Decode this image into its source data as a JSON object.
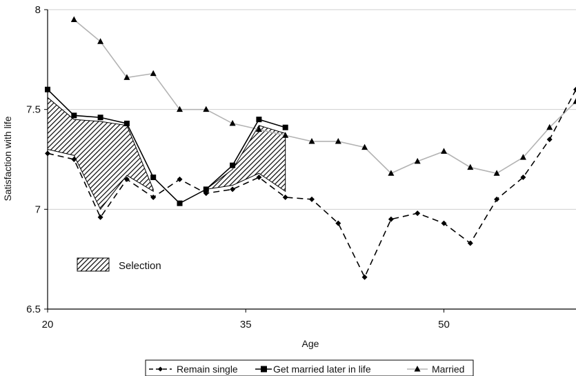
{
  "chart_data": {
    "type": "line",
    "xlabel": "Age",
    "ylabel": "Satisfaction with life",
    "xlim": [
      20,
      60
    ],
    "ylim": [
      6.5,
      8
    ],
    "x_ticks": [
      20,
      35,
      50
    ],
    "x_tick_labels": [
      "20",
      "35",
      "50"
    ],
    "y_ticks": [
      6.5,
      7,
      7.5,
      8
    ],
    "y_tick_labels": [
      "6.5",
      "7",
      "7.5",
      "8"
    ],
    "grid": "horizontal",
    "series": [
      {
        "name": "Remain single",
        "style": "dashed",
        "marker": "diamond",
        "color": "#000000",
        "x": [
          20,
          22,
          24,
          26,
          28,
          30,
          32,
          34,
          36,
          38,
          40,
          42,
          44,
          46,
          48,
          50,
          52,
          54,
          56,
          58,
          60
        ],
        "y": [
          7.28,
          7.25,
          6.96,
          7.15,
          7.06,
          7.15,
          7.08,
          7.1,
          7.16,
          7.06,
          7.05,
          6.93,
          6.66,
          6.95,
          6.98,
          6.93,
          6.83,
          7.05,
          7.16,
          7.35,
          7.6
        ]
      },
      {
        "name": "Get married later in life",
        "style": "solid",
        "marker": "square",
        "color": "#000000",
        "x": [
          20,
          22,
          24,
          26,
          28,
          30,
          32,
          34,
          36,
          38
        ],
        "y": [
          7.6,
          7.47,
          7.46,
          7.43,
          7.16,
          7.03,
          7.1,
          7.22,
          7.45,
          7.41
        ]
      },
      {
        "name": "Married",
        "style": "solid",
        "marker": "triangle",
        "color": "#b3b3b3",
        "x": [
          22,
          24,
          26,
          28,
          30,
          32,
          34,
          36,
          38,
          40,
          42,
          44,
          46,
          48,
          50,
          52,
          54,
          56,
          58,
          60
        ],
        "y": [
          7.95,
          7.84,
          7.66,
          7.68,
          7.5,
          7.5,
          7.43,
          7.4,
          7.37,
          7.34,
          7.34,
          7.31,
          7.18,
          7.24,
          7.29,
          7.21,
          7.18,
          7.26,
          7.41,
          7.54
        ]
      }
    ],
    "selection_regions": [
      {
        "upper": {
          "x": [
            20,
            22,
            24,
            26,
            28
          ],
          "y": [
            7.56,
            7.45,
            7.44,
            7.42,
            7.1
          ]
        },
        "lower": {
          "x": [
            20,
            22,
            24,
            26,
            28
          ],
          "y": [
            7.3,
            7.27,
            7.0,
            7.17,
            7.09
          ]
        }
      },
      {
        "upper": {
          "x": [
            32,
            34,
            36,
            38
          ],
          "y": [
            7.1,
            7.2,
            7.42,
            7.38
          ]
        },
        "lower": {
          "x": [
            32,
            34,
            36,
            38
          ],
          "y": [
            7.1,
            7.12,
            7.18,
            7.09
          ]
        }
      }
    ],
    "annotation": {
      "label": "Selection"
    },
    "legend": "bottom"
  }
}
